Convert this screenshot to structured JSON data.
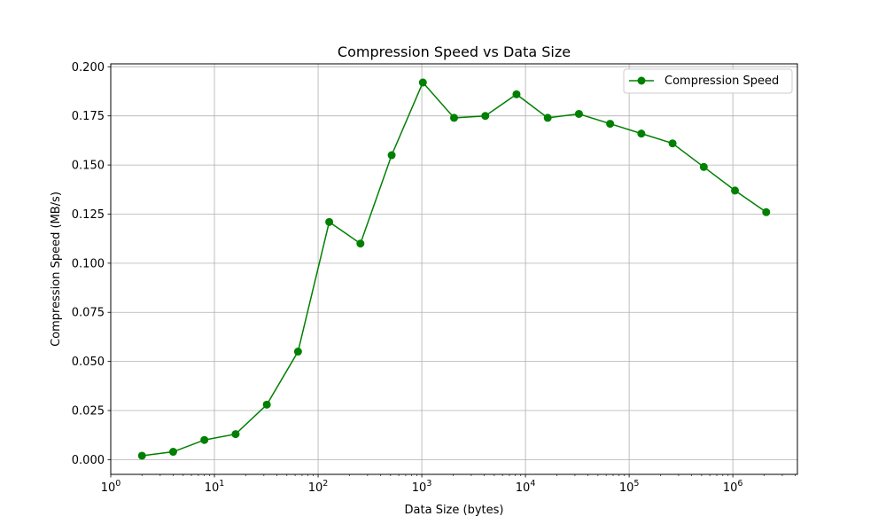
{
  "chart_data": {
    "type": "line",
    "title": "Compression Speed vs Data Size",
    "xlabel": "Data Size (bytes)",
    "ylabel": "Compression Speed (MB/s)",
    "xscale": "log",
    "xlim": [
      1,
      4194304
    ],
    "ylim": [
      -0.0075,
      0.2015
    ],
    "grid": true,
    "legend_position": "top-right",
    "color": "#008000",
    "x_ticks": [
      {
        "value": 1,
        "base": "10",
        "exp": "0"
      },
      {
        "value": 10,
        "base": "10",
        "exp": "1"
      },
      {
        "value": 100,
        "base": "10",
        "exp": "2"
      },
      {
        "value": 1000,
        "base": "10",
        "exp": "3"
      },
      {
        "value": 10000,
        "base": "10",
        "exp": "4"
      },
      {
        "value": 100000,
        "base": "10",
        "exp": "5"
      },
      {
        "value": 1000000,
        "base": "10",
        "exp": "6"
      }
    ],
    "y_ticks": [
      "0.000",
      "0.025",
      "0.050",
      "0.075",
      "0.100",
      "0.125",
      "0.150",
      "0.175",
      "0.200"
    ],
    "series": [
      {
        "name": "Compression Speed",
        "x": [
          2,
          4,
          8,
          16,
          32,
          64,
          128,
          256,
          512,
          1024,
          2048,
          4096,
          8192,
          16384,
          32768,
          65536,
          131072,
          262144,
          524288,
          1048576,
          2097152
        ],
        "y": [
          0.002,
          0.004,
          0.01,
          0.013,
          0.028,
          0.055,
          0.121,
          0.11,
          0.155,
          0.192,
          0.174,
          0.175,
          0.186,
          0.174,
          0.176,
          0.171,
          0.166,
          0.161,
          0.149,
          0.137,
          0.126
        ]
      }
    ]
  }
}
